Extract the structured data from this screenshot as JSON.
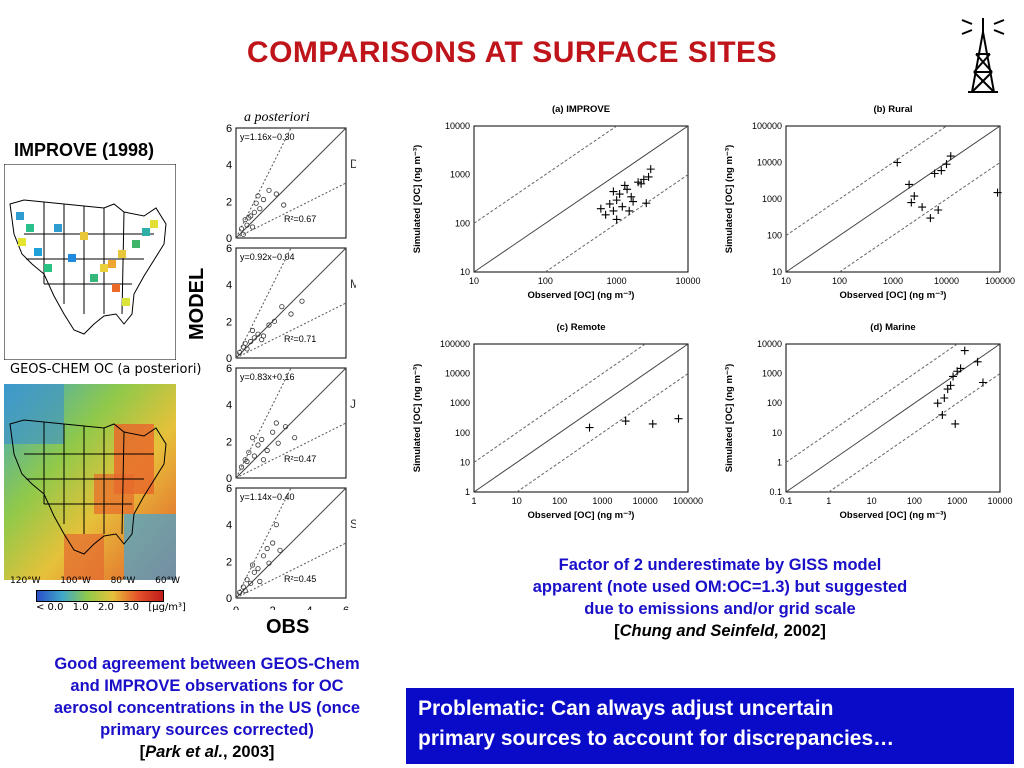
{
  "slide": {
    "title": "COMPARISONS AT SURFACE SITES",
    "improve_label": "IMPROVE (1998)",
    "geos_label": "GEOS-CHEM OC (a posteriori)",
    "model_label": "MODEL",
    "obs_label": "OBS",
    "aposteriori_label": "a posteriori",
    "map_lon_labels": [
      "120°W",
      "100°W",
      "80°W",
      "60°W"
    ],
    "colorbar_labels": [
      "< 0.0",
      "1.0",
      "2.0",
      "3.0",
      "[μg/m³]"
    ],
    "note_left_lines": [
      "Good agreement between GEOS-Chem",
      "and IMPROVE observations for OC",
      "aerosol concentrations in the US (once",
      "primary sources corrected)"
    ],
    "note_left_cite_author": "Park et al.",
    "note_left_cite_year": ", 2003",
    "note_right_lines": [
      "Factor of 2 underestimate by GISS model",
      "apparent (note used OM:OC=1.3) but suggested",
      "due to emissions and/or grid scale"
    ],
    "note_right_cite_author": "Chung and Seinfeld,",
    "note_right_cite_year": " 2002",
    "problem_text_line1": "Problematic: Can always adjust uncertain",
    "problem_text_line2": "primary sources to account for discrepancies…"
  },
  "chart_data": [
    {
      "type": "scatter",
      "title": "DJF",
      "equation": "y=1.16x−0.30",
      "r2": "R²=0.67",
      "xlim": [
        0,
        6
      ],
      "ylim": [
        0,
        6
      ],
      "x": [
        0.3,
        0.5,
        0.6,
        0.8,
        1.0,
        1.1,
        1.3,
        1.5,
        1.8,
        2.2,
        0.7,
        1.2,
        0.9,
        2.6,
        0.4
      ],
      "y": [
        0.5,
        1.0,
        0.7,
        1.2,
        1.4,
        1.9,
        1.6,
        2.1,
        2.6,
        2.4,
        1.1,
        2.3,
        0.6,
        1.8,
        0.2
      ]
    },
    {
      "type": "scatter",
      "title": "MAM",
      "equation": "y=0.92x−0.04",
      "r2": "R²=0.71",
      "xlim": [
        0,
        6
      ],
      "ylim": [
        0,
        6
      ],
      "x": [
        0.2,
        0.4,
        0.6,
        0.8,
        1.0,
        1.2,
        1.5,
        1.8,
        2.1,
        2.5,
        3.0,
        3.6,
        0.5,
        0.9,
        1.4
      ],
      "y": [
        0.3,
        0.6,
        0.5,
        0.9,
        1.1,
        1.3,
        1.2,
        1.8,
        2.0,
        2.8,
        2.4,
        3.1,
        0.8,
        1.5,
        1.0
      ]
    },
    {
      "type": "scatter",
      "title": "JJA",
      "equation": "y=0.83x+0.16",
      "r2": "R²=0.47",
      "xlim": [
        0,
        6
      ],
      "ylim": [
        0,
        6
      ],
      "x": [
        0.3,
        0.5,
        0.7,
        1.0,
        1.2,
        1.4,
        1.7,
        2.0,
        2.3,
        2.7,
        3.2,
        0.6,
        0.9,
        1.5,
        2.2
      ],
      "y": [
        0.6,
        1.0,
        1.4,
        1.2,
        1.8,
        2.1,
        1.5,
        2.5,
        1.9,
        2.8,
        2.2,
        0.9,
        2.2,
        1.0,
        3.0
      ]
    },
    {
      "type": "scatter",
      "title": "SON",
      "equation": "y=1.14x−0.40",
      "r2": "R²=0.45",
      "xlim": [
        0,
        6
      ],
      "ylim": [
        0,
        6
      ],
      "x": [
        0.2,
        0.4,
        0.6,
        0.8,
        1.0,
        1.2,
        1.5,
        1.8,
        2.0,
        2.4,
        0.5,
        0.9,
        1.3,
        1.7,
        2.2
      ],
      "y": [
        0.3,
        0.6,
        1.0,
        0.8,
        1.4,
        1.6,
        2.3,
        1.9,
        3.0,
        2.6,
        0.4,
        1.8,
        0.9,
        2.7,
        4.0
      ]
    },
    {
      "type": "scatter",
      "title": "(a) IMPROVE",
      "xlabel": "Observed [OC] (ng m⁻³)",
      "ylabel": "Simulated [OC] (ng m⁻³)",
      "scale": "log",
      "xlim": [
        10,
        10000
      ],
      "ylim": [
        10,
        10000
      ],
      "xticks": [
        "10",
        "100",
        "1000",
        "10000"
      ],
      "yticks": [
        "10",
        "100",
        "1000",
        "10000"
      ],
      "x": [
        700,
        800,
        900,
        1000,
        1100,
        1200,
        1400,
        1600,
        2000,
        2400,
        2800,
        3000,
        1300,
        900,
        1700,
        2200,
        600,
        1000,
        1500,
        2600
      ],
      "y": [
        150,
        250,
        180,
        300,
        400,
        220,
        500,
        350,
        700,
        800,
        900,
        1300,
        600,
        450,
        280,
        650,
        200,
        120,
        180,
        260
      ]
    },
    {
      "type": "scatter",
      "title": "(b) Rural",
      "xlabel": "Observed [OC] (ng m⁻³)",
      "ylabel": "Simulated [OC] (ng m⁻³)",
      "scale": "log",
      "xlim": [
        10,
        100000
      ],
      "ylim": [
        10,
        100000
      ],
      "xticks": [
        "10",
        "100",
        "1000",
        "10000",
        "100000"
      ],
      "yticks": [
        "10",
        "100",
        "1000",
        "10000",
        "100000"
      ],
      "x": [
        1200,
        2000,
        2200,
        2500,
        3500,
        5000,
        6000,
        7000,
        8000,
        10000,
        12000,
        90000
      ],
      "y": [
        10000,
        2500,
        800,
        1200,
        600,
        300,
        5000,
        500,
        6000,
        9000,
        15000,
        1500
      ]
    },
    {
      "type": "scatter",
      "title": "(c) Remote",
      "xlabel": "Observed [OC] (ng m⁻³)",
      "ylabel": "Simulated [OC] (ng m⁻³)",
      "scale": "log",
      "xlim": [
        1,
        100000
      ],
      "ylim": [
        1,
        100000
      ],
      "xticks": [
        "1",
        "10",
        "100",
        "1000",
        "10000",
        "100000"
      ],
      "yticks": [
        "1",
        "10",
        "100",
        "1000",
        "10000",
        "100000"
      ],
      "x": [
        500,
        3500,
        15000,
        60000
      ],
      "y": [
        150,
        250,
        200,
        300
      ]
    },
    {
      "type": "scatter",
      "title": "(d) Marine",
      "xlabel": "Observed [OC] (ng m⁻³)",
      "ylabel": "Simulated [OC] (ng m⁻³)",
      "scale": "log",
      "xlim": [
        0.1,
        10000
      ],
      "ylim": [
        0.1,
        10000
      ],
      "xticks": [
        "0.1",
        "1",
        "10",
        "100",
        "1000",
        "10000"
      ],
      "yticks": [
        "0.1",
        "1",
        "10",
        "100",
        "1000",
        "10000"
      ],
      "x": [
        350,
        450,
        500,
        600,
        800,
        1000,
        1200,
        1500,
        3000,
        4000,
        900,
        700
      ],
      "y": [
        100,
        40,
        150,
        300,
        800,
        1200,
        1500,
        6000,
        2500,
        500,
        20,
        400
      ]
    }
  ]
}
